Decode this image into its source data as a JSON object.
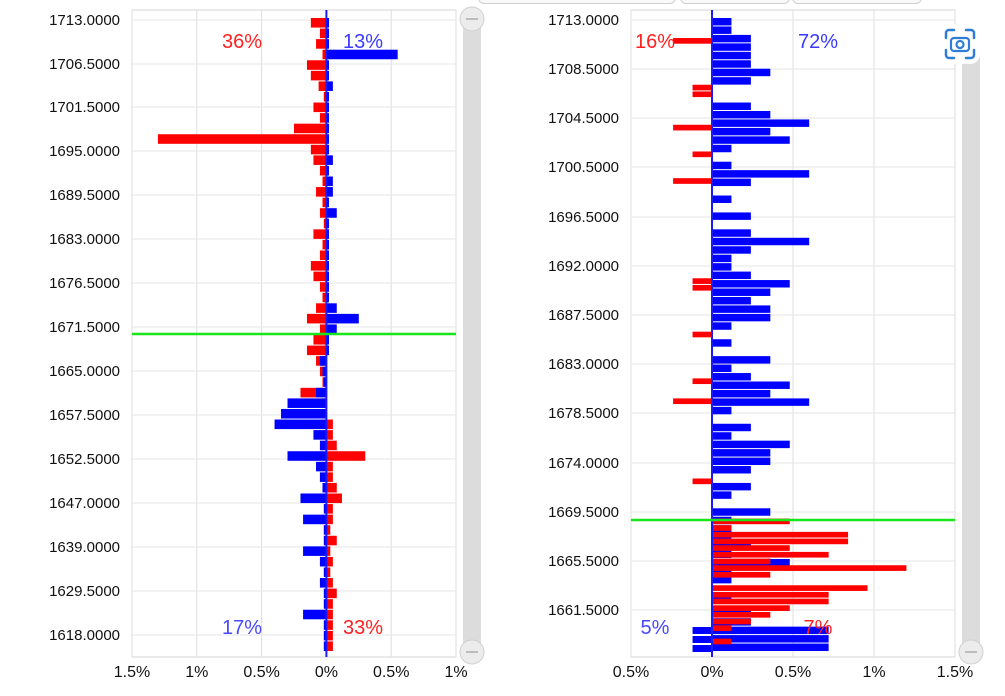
{
  "chart_data": [
    {
      "type": "bar",
      "orientation": "horizontal-diverging",
      "y_tick_labels": [
        "1713.0000",
        "1706.5000",
        "1701.5000",
        "1695.0000",
        "1689.5000",
        "1683.0000",
        "1676.5000",
        "1671.5000",
        "1665.0000",
        "1657.5000",
        "1652.5000",
        "1647.0000",
        "1639.0000",
        "1629.5000",
        "1618.0000"
      ],
      "x_tick_labels": [
        "1.5%",
        "1%",
        "0.5%",
        "0%",
        "0.5%",
        "1%"
      ],
      "xlim": [
        -1.5,
        1.0
      ],
      "reference_line_color": "#19e619",
      "reference_line_at": 1670.0,
      "annotations": [
        {
          "text": "36%",
          "color": "#ff2020",
          "position": "top-left"
        },
        {
          "text": "13%",
          "color": "#3a3aff",
          "position": "top-right"
        },
        {
          "text": "17%",
          "color": "#4848ff",
          "position": "bottom-left"
        },
        {
          "text": "33%",
          "color": "#ff2020",
          "position": "bottom-right"
        }
      ],
      "series": [
        {
          "color": "#ff0000",
          "values": [
            -0.12,
            -0.05,
            -0.08,
            -0.03,
            -0.15,
            -0.12,
            -0.06,
            -0.02,
            -0.1,
            -0.05,
            -0.25,
            -1.3,
            -0.12,
            -0.1,
            -0.05,
            -0.03,
            -0.08,
            -0.03,
            -0.05,
            -0.02,
            -0.1,
            -0.03,
            -0.05,
            -0.12,
            -0.1,
            -0.05,
            -0.03,
            -0.08,
            -0.15,
            -0.05,
            -0.1,
            -0.15,
            -0.08,
            -0.05,
            -0.03,
            -0.2,
            -0.03,
            -0.02,
            0.05,
            0.05,
            0.08,
            0.3,
            0.05,
            0.05,
            0.08,
            0.12,
            0.05,
            0.05,
            0.03,
            0.08,
            0.03,
            0.05,
            0.03,
            0.05,
            0.08,
            0.05,
            0.05,
            0.05,
            0.05,
            0.05
          ]
        },
        {
          "color": "#0000ff",
          "values": [
            0.02,
            0.02,
            0.02,
            0.55,
            0.02,
            0.02,
            0.05,
            0.02,
            0.02,
            0.02,
            0.02,
            0.02,
            0.02,
            0.05,
            0.02,
            0.05,
            0.05,
            0.02,
            0.08,
            0.02,
            0.02,
            0.02,
            0.02,
            0.02,
            0.02,
            0.02,
            0.02,
            0.08,
            0.25,
            0.08,
            0.02,
            0.02,
            -0.05,
            -0.03,
            -0.02,
            -0.08,
            -0.3,
            -0.35,
            -0.4,
            -0.1,
            -0.05,
            -0.3,
            -0.08,
            -0.05,
            -0.03,
            -0.2,
            -0.02,
            -0.18,
            -0.02,
            -0.02,
            -0.18,
            -0.05,
            -0.02,
            -0.05,
            -0.02,
            -0.02,
            -0.18,
            -0.02,
            -0.02,
            -0.02
          ]
        }
      ]
    },
    {
      "type": "bar",
      "orientation": "horizontal-diverging",
      "y_tick_labels": [
        "1713.0000",
        "1708.5000",
        "1704.5000",
        "1700.5000",
        "1696.5000",
        "1692.0000",
        "1687.5000",
        "1683.0000",
        "1678.5000",
        "1674.0000",
        "1669.5000",
        "1665.5000",
        "1661.5000"
      ],
      "x_tick_labels": [
        "0.5%",
        "0%",
        "0.5%",
        "1%",
        "1.5%"
      ],
      "xlim": [
        -0.5,
        1.5
      ],
      "reference_line_color": "#19e619",
      "reference_line_at": 1668.5,
      "annotations": [
        {
          "text": "16%",
          "color": "#ff2020",
          "position": "top-left"
        },
        {
          "text": "72%",
          "color": "#3a3aff",
          "position": "top-right"
        },
        {
          "text": "5%",
          "color": "#4848ff",
          "position": "bottom-left"
        },
        {
          "text": "7%",
          "color": "#ff2020",
          "position": "bottom-right"
        }
      ],
      "series": [
        {
          "color": "#0000ff",
          "values": [
            0.12,
            0.12,
            0.24,
            0.24,
            0.24,
            0.24,
            0.36,
            0.24,
            0,
            0,
            0.24,
            0.36,
            0.6,
            0.36,
            0.48,
            0.12,
            0,
            0.12,
            0.6,
            0.24,
            0,
            0.12,
            0,
            0.24,
            0,
            0.24,
            0.6,
            0.24,
            0.12,
            0.12,
            0.24,
            0.48,
            0.36,
            0.24,
            0.36,
            0.36,
            0.12,
            0,
            0.12,
            0,
            0.36,
            0.12,
            0.24,
            0.48,
            0.36,
            0.6,
            0.12,
            0,
            0.24,
            0.12,
            0.48,
            0.36,
            0.36,
            0.24,
            0,
            0.24,
            0.12,
            0,
            0.36,
            0.12,
            0.12,
            0.12,
            0.24,
            0.12,
            0.48,
            0.12,
            0.12,
            0,
            0.12,
            0,
            0.24,
            0.24,
            0.72,
            0.72,
            0.72
          ]
        },
        {
          "color": "#ff0000",
          "values": [
            0,
            0,
            0,
            -0.24,
            0,
            0,
            0,
            0,
            0,
            0,
            -0.12,
            -0.12,
            0,
            0,
            0,
            0,
            -0.24,
            0,
            0,
            0,
            -0.12,
            0,
            0,
            0,
            -0.24,
            0,
            0,
            0,
            0,
            0,
            0,
            0,
            0,
            0,
            0,
            0,
            0,
            0,
            0,
            -0.12,
            -0.12,
            0,
            0,
            0,
            0,
            0,
            0,
            -0.12,
            0,
            0,
            0,
            0,
            0,
            0,
            -0.12,
            0,
            0,
            -0.24,
            0,
            0,
            0,
            0,
            0,
            0,
            0,
            0,
            0,
            0,
            0,
            -0.12,
            0,
            0,
            0,
            0,
            0,
            0.48,
            0.12,
            0.84,
            0.84,
            0.48,
            0.72,
            0.36,
            1.2,
            0.36,
            0,
            0.96,
            0.72,
            0.72,
            0.48,
            0.36,
            0.24,
            0.12,
            0,
            0.12,
            0
          ]
        },
        {
          "color": "#0000ff",
          "overflow_values": [
            -0.12,
            -0.12,
            -0.12
          ]
        }
      ]
    }
  ]
}
